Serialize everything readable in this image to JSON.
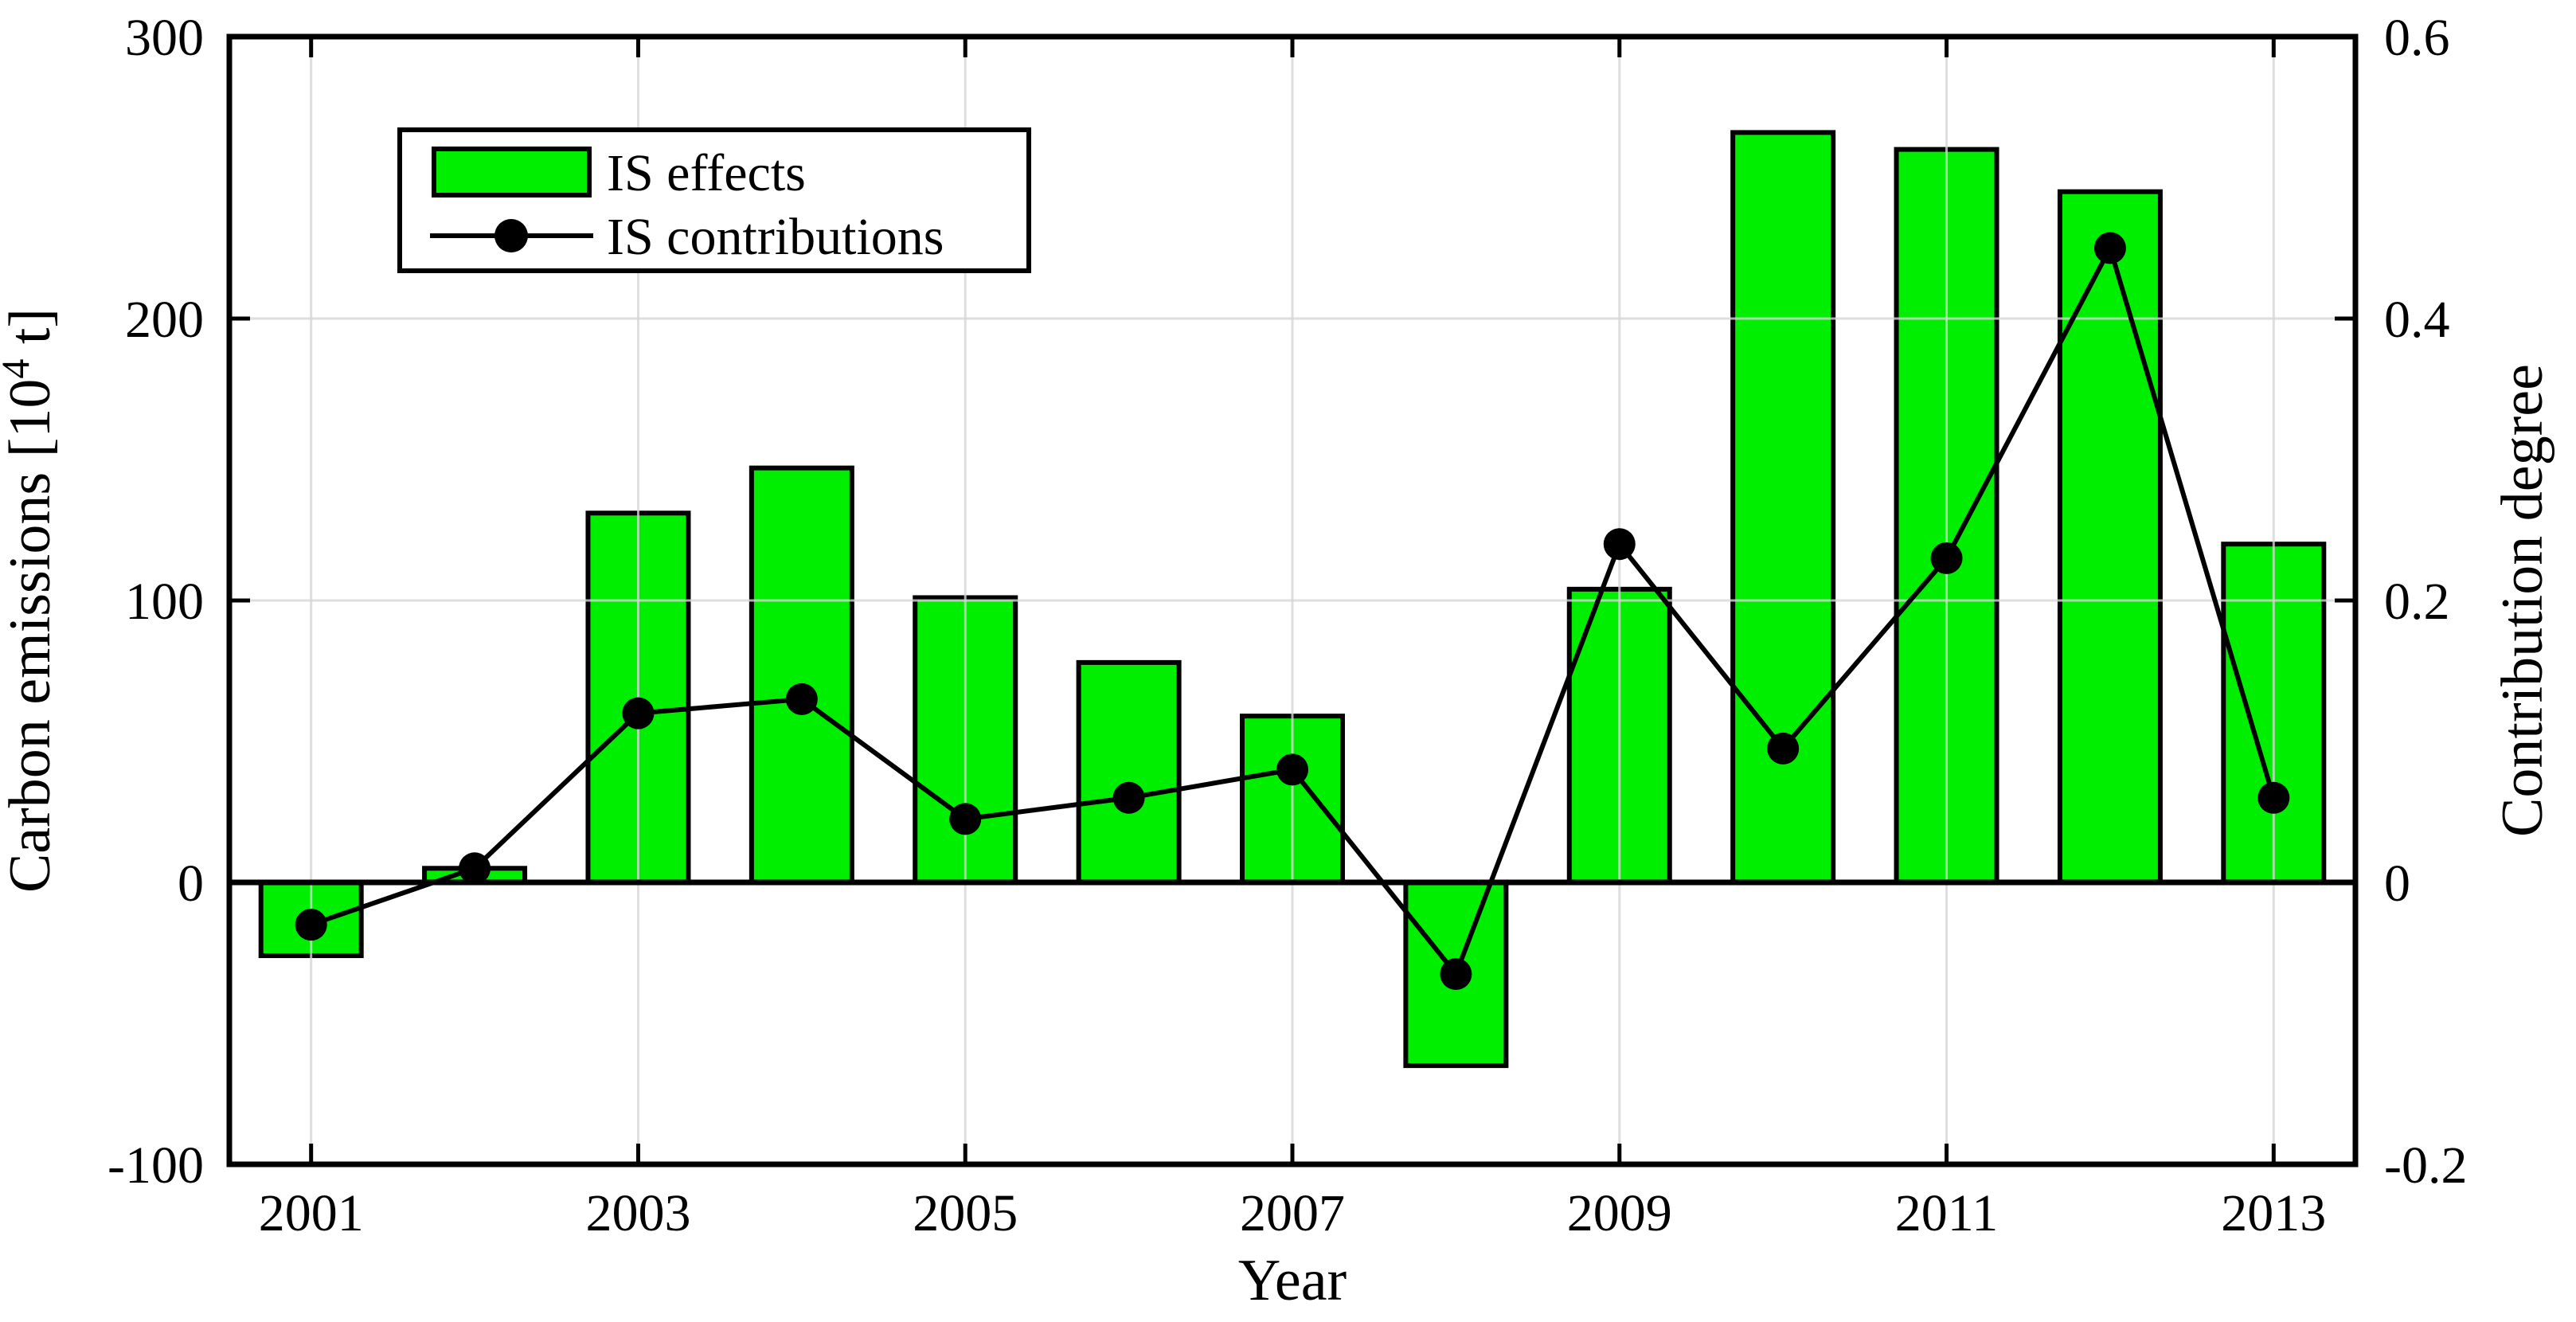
{
  "page": {
    "background": "#ffffff"
  },
  "chart_data": {
    "type": "bar",
    "combo_types": [
      "bar",
      "line"
    ],
    "title": "",
    "categories": [
      "2001",
      "2002",
      "2003",
      "2004",
      "2005",
      "2006",
      "2007",
      "2008",
      "2009",
      "2010",
      "2011",
      "2012",
      "2013"
    ],
    "series": [
      {
        "name": "IS effects",
        "type": "bar",
        "axis": "left",
        "color": "#00ee00",
        "edge_color": "#000000",
        "values": [
          -26,
          5,
          131,
          147,
          101,
          78,
          59,
          -65,
          104,
          266,
          260,
          245,
          120
        ]
      },
      {
        "name": "IS contributions",
        "type": "line",
        "axis": "right",
        "color": "#000000",
        "marker": "filled-circle",
        "values": [
          -0.03,
          0.01,
          0.12,
          0.13,
          0.045,
          0.06,
          0.08,
          -0.065,
          0.24,
          0.095,
          0.23,
          0.45,
          0.06
        ]
      }
    ],
    "xlabel": "Year",
    "ylabel_left": "Carbon emissions [10⁴ t]",
    "ylabel_left_parts": {
      "prefix": "Carbon emissions [10",
      "superscript": "4",
      "suffix": " t]"
    },
    "ylabel_right": "Contribution degree",
    "left_axis": {
      "min": -100,
      "max": 300,
      "tick_values": [
        300,
        200,
        100,
        0,
        -100
      ],
      "tick_labels": [
        "300",
        "200",
        "100",
        "0",
        "-100"
      ]
    },
    "right_axis": {
      "min": -0.2,
      "max": 0.6,
      "tick_values": [
        0.6,
        0.4,
        0.2,
        0,
        -0.2
      ],
      "tick_labels": [
        "0.6",
        "0.4",
        "0.2",
        "0",
        "-0.2"
      ]
    },
    "x_tick_years": [
      2001,
      2003,
      2005,
      2007,
      2009,
      2011,
      2013
    ],
    "x_tick_labels": [
      "2001",
      "2003",
      "2005",
      "2007",
      "2009",
      "2011",
      "2013"
    ],
    "grid": true,
    "gridline_years": [
      2001,
      2003,
      2005,
      2007,
      2009,
      2011,
      2013
    ],
    "gridline_left_values": [
      100,
      200
    ],
    "zero_baseline": 0,
    "legend": {
      "position": "top-left-inside",
      "entries": [
        "IS effects",
        "IS contributions"
      ]
    },
    "colors": {
      "bar_fill": "#00ee00",
      "bar_edge": "#000000",
      "line": "#000000",
      "grid": "#d6d6d6",
      "axis": "#000000",
      "background": "#ffffff"
    }
  }
}
